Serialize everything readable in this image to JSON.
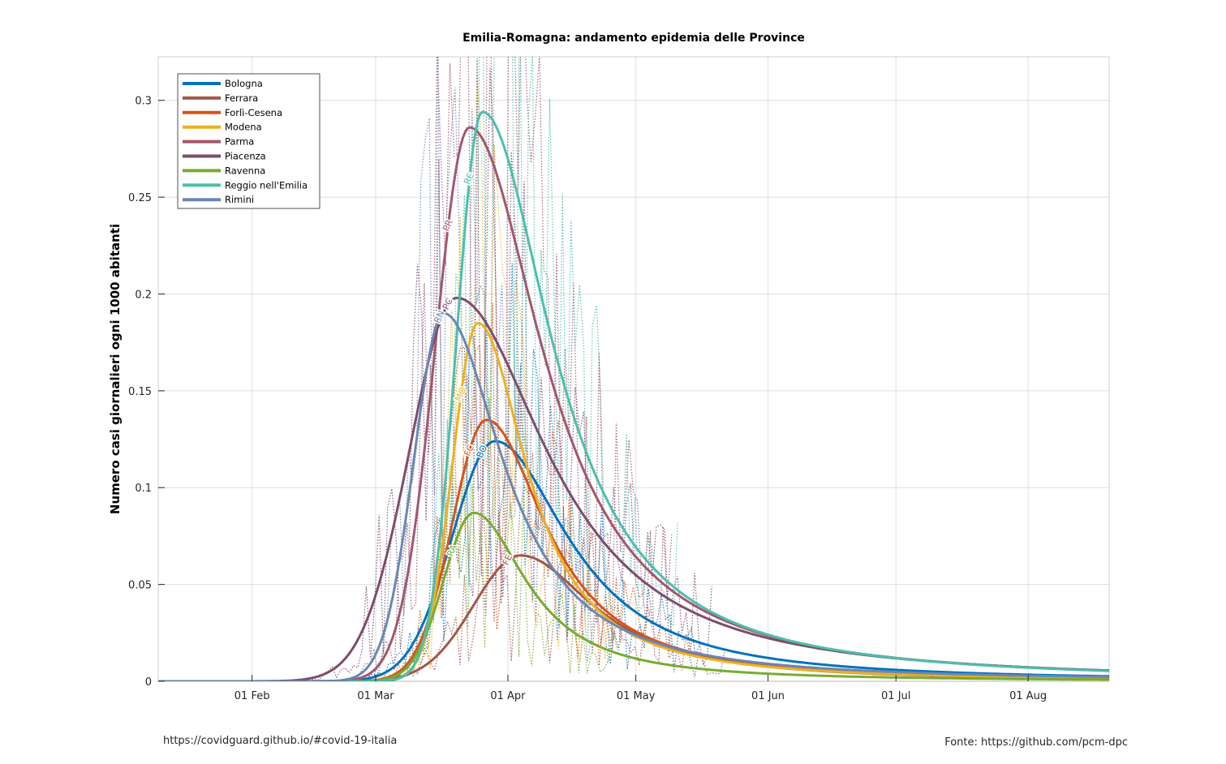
{
  "chart_data": {
    "type": "line",
    "title": "Emilia-Romagna: andamento epidemia delle Province",
    "xlabel": "",
    "ylabel": "Numero casi giornalieri ogni 1000 abitanti",
    "x_start": "2020-01-10",
    "x_end": "2020-08-20",
    "ylim": [
      0,
      0.3225
    ],
    "yticks": [
      0,
      0.05,
      0.1,
      0.15,
      0.2,
      0.25,
      0.3
    ],
    "ytick_labels": [
      "0",
      "0.05",
      "0.1",
      "0.15",
      "0.2",
      "0.25",
      "0.3"
    ],
    "xticks": [
      "2020-02-01",
      "2020-03-01",
      "2020-04-01",
      "2020-05-01",
      "2020-06-01",
      "2020-07-01",
      "2020-08-01"
    ],
    "xtick_labels": [
      "01 Feb",
      "01 Mar",
      "01 Apr",
      "01 May",
      "01 Jun",
      "01 Jul",
      "01 Aug"
    ],
    "grid": true,
    "legend_position": "top-left",
    "series": [
      {
        "name": "Bologna",
        "abbr": "BO",
        "color": "#0072bd",
        "peak_date": "2020-03-29",
        "peak_value": 0.124,
        "rise_days": 10,
        "decay_days": 21,
        "label_date": "2020-03-26"
      },
      {
        "name": "Ferrara",
        "abbr": "FE",
        "color": "#a2574b",
        "peak_date": "2020-04-04",
        "peak_value": 0.065,
        "rise_days": 11,
        "decay_days": 21,
        "label_date": "2020-04-01"
      },
      {
        "name": "Forlì-Cesena",
        "abbr": "FC",
        "color": "#d95319",
        "peak_date": "2020-03-27",
        "peak_value": 0.135,
        "rise_days": 8,
        "decay_days": 17,
        "label_date": "2020-03-23"
      },
      {
        "name": "Modena",
        "abbr": "MO",
        "color": "#edb120",
        "peak_date": "2020-03-25",
        "peak_value": 0.185,
        "rise_days": 6,
        "decay_days": 14,
        "label_date": "2020-03-21"
      },
      {
        "name": "Parma",
        "abbr": "PR",
        "color": "#a2576d",
        "peak_date": "2020-03-23",
        "peak_value": 0.286,
        "rise_days": 8,
        "decay_days": 21,
        "label_date": "2020-03-18"
      },
      {
        "name": "Piacenza",
        "abbr": "PC",
        "color": "#7e4d6b",
        "peak_date": "2020-03-20",
        "peak_value": 0.198,
        "rise_days": 11,
        "decay_days": 26,
        "label_date": "2020-03-18"
      },
      {
        "name": "Ravenna",
        "abbr": "RA",
        "color": "#77ac30",
        "peak_date": "2020-03-24",
        "peak_value": 0.087,
        "rise_days": 7,
        "decay_days": 15,
        "label_date": "2020-03-19"
      },
      {
        "name": "Reggio nell'Emilia",
        "abbr": "RE",
        "color": "#4dbeae",
        "peak_date": "2020-03-26",
        "peak_value": 0.294,
        "rise_days": 6,
        "decay_days": 20,
        "label_date": "2020-03-23"
      },
      {
        "name": "Rimini",
        "abbr": "RN",
        "color": "#6b87b3",
        "peak_date": "2020-03-17",
        "peak_value": 0.19,
        "rise_days": 7,
        "decay_days": 17,
        "label_date": "2020-03-16"
      }
    ]
  },
  "footer": {
    "left": "https://covidguard.github.io/#covid-19-italia",
    "right": "Fonte: https://github.com/pcm-dpc"
  }
}
